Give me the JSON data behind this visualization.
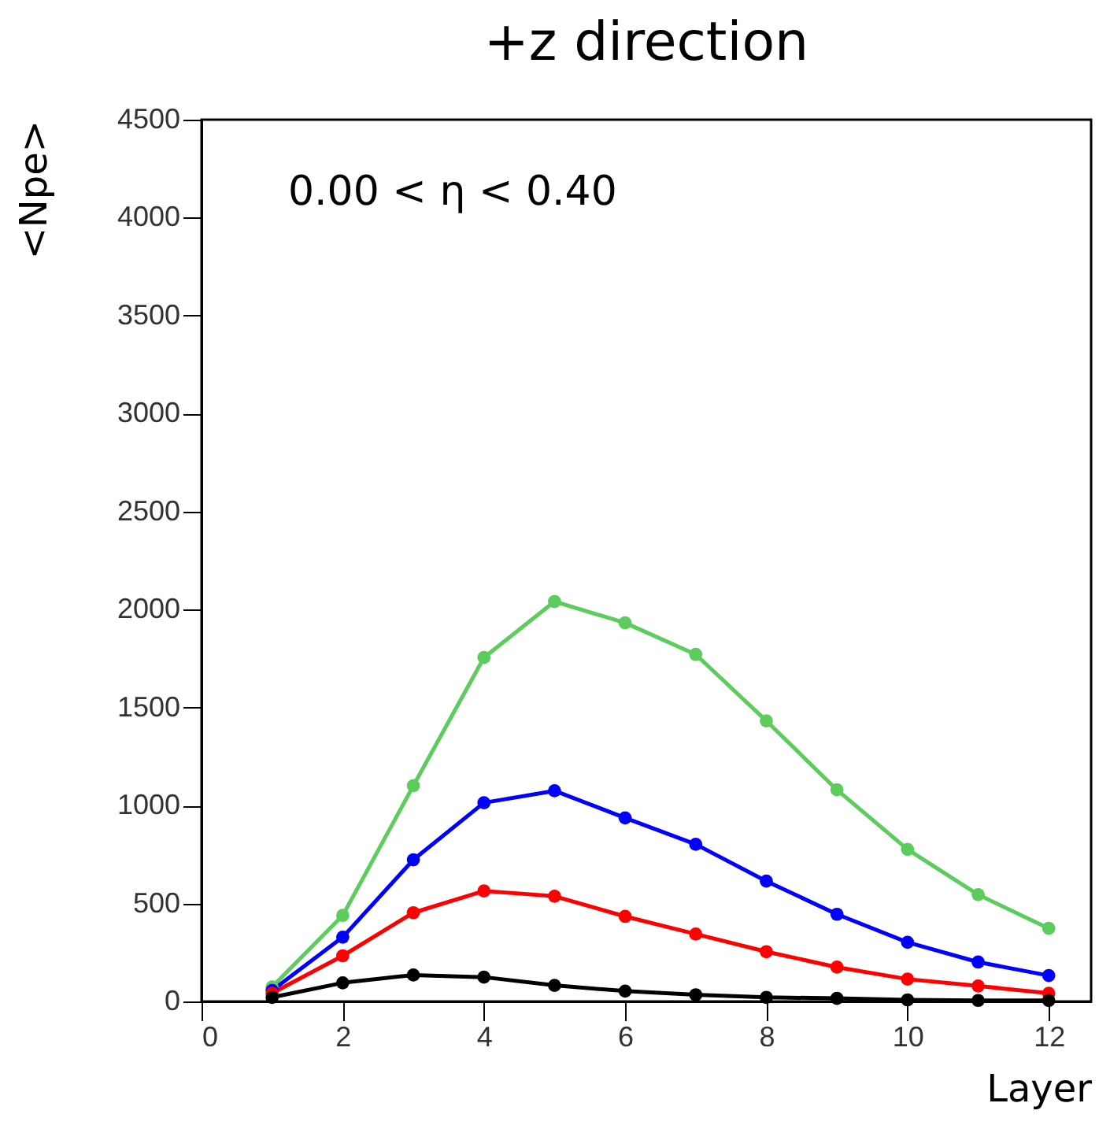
{
  "chart_data": {
    "type": "line",
    "title": "+z direction",
    "xlabel": "Layer",
    "ylabel": "<Npe>",
    "annotations": [
      "0.00 < η < 0.40"
    ],
    "x": [
      1,
      2,
      3,
      4,
      5,
      6,
      7,
      8,
      9,
      10,
      11,
      12
    ],
    "series": [
      {
        "color": "#5ccc5c",
        "values": [
          74,
          439,
          1101,
          1755,
          2041,
          1932,
          1771,
          1432,
          1080,
          776,
          545,
          373
        ]
      },
      {
        "color": "#0000ff",
        "values": [
          56,
          328,
          723,
          1014,
          1075,
          937,
          802,
          614,
          445,
          302,
          201,
          132
        ]
      },
      {
        "color": "#ff0000",
        "values": [
          42,
          233,
          453,
          564,
          537,
          434,
          344,
          254,
          175,
          114,
          79,
          42
        ]
      },
      {
        "color": "#000000",
        "values": [
          21,
          95,
          135,
          124,
          82,
          53,
          34,
          21,
          16,
          8,
          5,
          5
        ]
      }
    ],
    "xlim": [
      0,
      12.6
    ],
    "xticks": [
      0,
      2,
      4,
      6,
      8,
      10,
      12
    ],
    "ylim": [
      0,
      4500
    ],
    "yticks": [
      0,
      500,
      1000,
      1500,
      2000,
      2500,
      3000,
      3500,
      4000,
      4500
    ],
    "grid": false,
    "legend": false,
    "marker": "circle",
    "line_style": "solid"
  }
}
